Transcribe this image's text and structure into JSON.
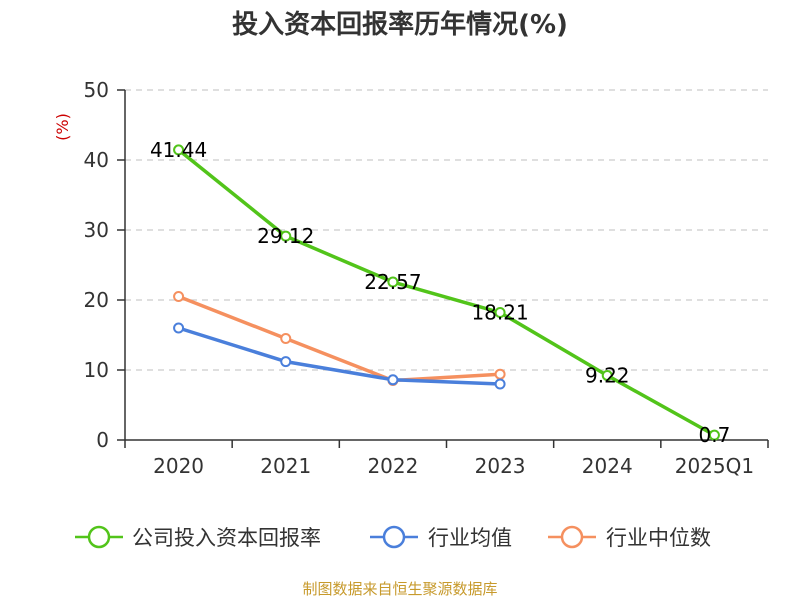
{
  "chart_data": {
    "type": "line",
    "title": "投入资本回报率历年情况(%)",
    "ylabel": "(%)",
    "xlabel": "",
    "categories": [
      "2020",
      "2021",
      "2022",
      "2023",
      "2024",
      "2025Q1"
    ],
    "ylim": [
      0,
      50
    ],
    "yticks": [
      0,
      10,
      20,
      30,
      40,
      50
    ],
    "grid": true,
    "legend_position": "bottom",
    "series": [
      {
        "name": "公司投入资本回报率",
        "color": "#52c41a",
        "values": [
          41.44,
          29.12,
          22.57,
          18.21,
          9.22,
          0.7
        ],
        "labels": [
          "41.44",
          "29.12",
          "22.57",
          "18.21",
          "9.22",
          "0.7"
        ]
      },
      {
        "name": "行业均值",
        "color": "#4a7fdb",
        "values": [
          16.0,
          11.2,
          8.6,
          8.0,
          null,
          null
        ]
      },
      {
        "name": "行业中位数",
        "color": "#f5905f",
        "values": [
          20.5,
          14.5,
          8.5,
          9.4,
          null,
          null
        ]
      }
    ],
    "source": "制图数据来自恒生聚源数据库",
    "colors": {
      "ylabel": "#cc0000",
      "source": "#c79a2c",
      "axis": "#333333",
      "grid": "#cccccc"
    }
  }
}
